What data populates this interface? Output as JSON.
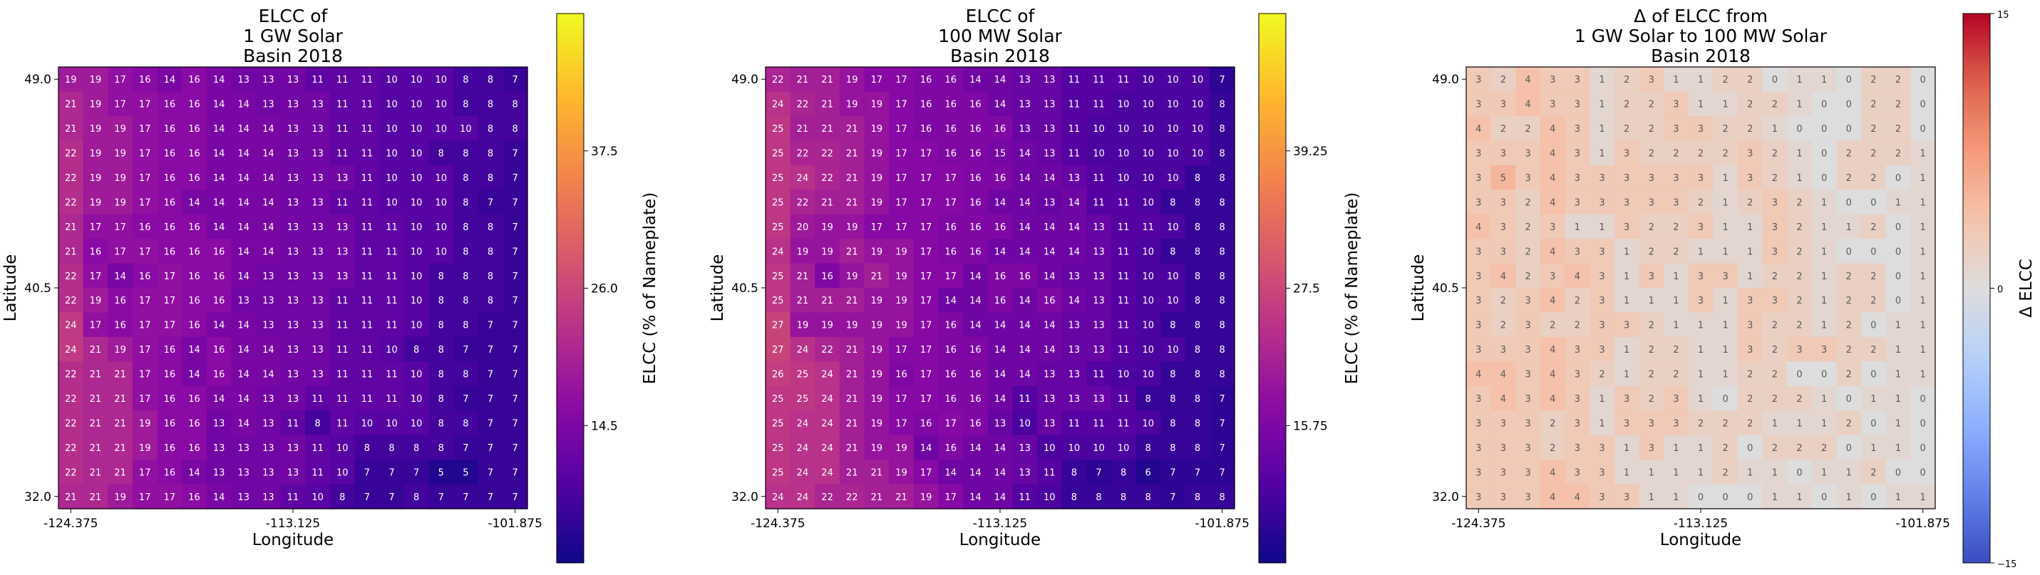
{
  "chart_data": [
    {
      "type": "heatmap",
      "title_lines": [
        "ELCC of",
        "1 GW Solar",
        "Basin 2018"
      ],
      "xlabel": "Longitude",
      "ylabel": "Latitude",
      "x_ticks": [
        "-124.375",
        "-113.125",
        "-101.875"
      ],
      "y_ticks": [
        "49.0",
        "40.5",
        "32.0"
      ],
      "colorbar_label": "ELCC (% of Nameplate)",
      "colorbar_ticks": [
        "37.5",
        "26.0",
        "14.5"
      ],
      "colorbar_range": [
        3,
        49
      ],
      "colormap": "plasma",
      "values": [
        [
          19,
          19,
          17,
          16,
          14,
          16,
          14,
          13,
          13,
          13,
          11,
          11,
          11,
          10,
          10,
          10,
          8,
          8,
          7
        ],
        [
          21,
          19,
          17,
          17,
          16,
          16,
          14,
          14,
          13,
          13,
          13,
          11,
          11,
          10,
          10,
          10,
          8,
          8,
          8
        ],
        [
          21,
          19,
          19,
          17,
          16,
          16,
          14,
          14,
          14,
          13,
          13,
          11,
          11,
          10,
          10,
          10,
          10,
          8,
          8
        ],
        [
          22,
          19,
          19,
          17,
          16,
          16,
          14,
          14,
          14,
          13,
          13,
          11,
          11,
          10,
          10,
          8,
          8,
          8,
          7
        ],
        [
          22,
          19,
          19,
          17,
          16,
          16,
          14,
          14,
          14,
          13,
          13,
          13,
          11,
          10,
          10,
          10,
          8,
          8,
          7
        ],
        [
          22,
          19,
          19,
          17,
          16,
          14,
          14,
          14,
          14,
          13,
          13,
          11,
          11,
          10,
          10,
          10,
          8,
          7,
          7
        ],
        [
          21,
          17,
          17,
          16,
          16,
          16,
          14,
          14,
          14,
          13,
          13,
          13,
          11,
          11,
          10,
          10,
          8,
          8,
          7
        ],
        [
          21,
          16,
          17,
          17,
          16,
          16,
          16,
          14,
          14,
          13,
          13,
          13,
          11,
          11,
          10,
          10,
          8,
          8,
          7
        ],
        [
          22,
          17,
          14,
          16,
          17,
          16,
          16,
          14,
          13,
          13,
          13,
          13,
          11,
          11,
          10,
          8,
          8,
          8,
          7
        ],
        [
          22,
          19,
          16,
          17,
          17,
          16,
          16,
          13,
          13,
          13,
          13,
          11,
          11,
          11,
          10,
          8,
          8,
          8,
          7
        ],
        [
          24,
          17,
          16,
          17,
          17,
          16,
          14,
          14,
          13,
          13,
          13,
          11,
          11,
          11,
          10,
          8,
          8,
          7,
          7
        ],
        [
          24,
          21,
          19,
          17,
          16,
          14,
          16,
          14,
          14,
          13,
          13,
          11,
          11,
          10,
          8,
          8,
          7,
          7,
          7
        ],
        [
          22,
          21,
          21,
          17,
          16,
          14,
          16,
          14,
          14,
          13,
          13,
          11,
          11,
          11,
          10,
          8,
          8,
          7,
          7
        ],
        [
          22,
          21,
          21,
          17,
          16,
          16,
          14,
          14,
          13,
          13,
          11,
          11,
          11,
          11,
          10,
          8,
          7,
          7,
          7
        ],
        [
          22,
          21,
          21,
          19,
          16,
          16,
          13,
          14,
          13,
          11,
          8,
          11,
          10,
          10,
          10,
          8,
          8,
          7,
          7
        ],
        [
          22,
          21,
          21,
          19,
          16,
          16,
          13,
          13,
          13,
          13,
          11,
          10,
          8,
          8,
          8,
          8,
          7,
          7,
          7
        ],
        [
          22,
          21,
          21,
          17,
          16,
          14,
          13,
          13,
          13,
          13,
          11,
          10,
          7,
          7,
          7,
          5,
          5,
          7,
          7
        ],
        [
          21,
          21,
          19,
          17,
          17,
          16,
          14,
          13,
          13,
          11,
          10,
          8,
          7,
          7,
          8,
          7,
          7,
          7,
          7
        ]
      ]
    },
    {
      "type": "heatmap",
      "title_lines": [
        "ELCC of",
        "100 MW Solar",
        "Basin 2018"
      ],
      "xlabel": "Longitude",
      "ylabel": "Latitude",
      "x_ticks": [
        "-124.375",
        "-113.125",
        "-101.875"
      ],
      "y_ticks": [
        "49.0",
        "40.5",
        "32.0"
      ],
      "colorbar_label": "ELCC (% of Nameplate)",
      "colorbar_ticks": [
        "39.25",
        "27.5",
        "15.75"
      ],
      "colorbar_range": [
        4,
        51
      ],
      "colormap": "plasma",
      "values": [
        [
          22,
          21,
          21,
          19,
          17,
          17,
          16,
          16,
          14,
          14,
          13,
          13,
          11,
          11,
          11,
          10,
          10,
          10,
          7
        ],
        [
          24,
          22,
          21,
          19,
          19,
          17,
          16,
          16,
          16,
          14,
          13,
          13,
          11,
          11,
          10,
          10,
          10,
          10,
          8
        ],
        [
          25,
          21,
          21,
          21,
          19,
          17,
          16,
          16,
          16,
          16,
          13,
          13,
          11,
          10,
          10,
          10,
          10,
          10,
          8
        ],
        [
          25,
          22,
          22,
          21,
          19,
          17,
          17,
          16,
          16,
          15,
          14,
          13,
          11,
          10,
          10,
          10,
          10,
          10,
          8
        ],
        [
          25,
          24,
          22,
          21,
          19,
          17,
          17,
          17,
          16,
          16,
          14,
          14,
          13,
          11,
          10,
          10,
          10,
          8,
          8
        ],
        [
          25,
          22,
          21,
          21,
          19,
          17,
          17,
          17,
          16,
          14,
          14,
          13,
          14,
          11,
          11,
          10,
          8,
          8,
          8
        ],
        [
          25,
          20,
          19,
          19,
          17,
          17,
          17,
          16,
          16,
          16,
          14,
          14,
          14,
          13,
          11,
          11,
          10,
          8,
          8
        ],
        [
          24,
          19,
          19,
          21,
          19,
          19,
          17,
          16,
          16,
          14,
          14,
          14,
          14,
          13,
          11,
          10,
          8,
          8,
          8
        ],
        [
          25,
          21,
          16,
          19,
          21,
          19,
          17,
          17,
          14,
          16,
          16,
          14,
          13,
          13,
          11,
          10,
          10,
          8,
          8
        ],
        [
          25,
          21,
          21,
          21,
          19,
          19,
          17,
          14,
          14,
          16,
          14,
          16,
          14,
          13,
          11,
          10,
          10,
          8,
          8
        ],
        [
          27,
          19,
          19,
          19,
          19,
          19,
          17,
          16,
          14,
          14,
          14,
          14,
          13,
          13,
          11,
          10,
          8,
          8,
          8
        ],
        [
          27,
          24,
          22,
          21,
          19,
          17,
          17,
          16,
          16,
          14,
          14,
          14,
          13,
          13,
          11,
          10,
          10,
          8,
          8
        ],
        [
          26,
          25,
          24,
          21,
          19,
          16,
          17,
          16,
          16,
          14,
          14,
          13,
          13,
          11,
          10,
          10,
          8,
          8,
          8
        ],
        [
          25,
          25,
          24,
          21,
          19,
          17,
          17,
          16,
          16,
          14,
          11,
          13,
          13,
          13,
          11,
          8,
          8,
          8,
          7
        ],
        [
          25,
          24,
          24,
          21,
          19,
          17,
          16,
          17,
          16,
          13,
          10,
          13,
          11,
          11,
          11,
          10,
          8,
          8,
          7
        ],
        [
          25,
          24,
          24,
          21,
          19,
          19,
          14,
          16,
          14,
          14,
          13,
          10,
          10,
          10,
          10,
          8,
          8,
          8,
          7
        ],
        [
          25,
          24,
          24,
          21,
          21,
          19,
          17,
          14,
          14,
          14,
          13,
          11,
          8,
          7,
          8,
          6,
          7,
          7,
          7
        ],
        [
          24,
          24,
          22,
          22,
          21,
          21,
          19,
          17,
          14,
          14,
          11,
          10,
          8,
          8,
          8,
          8,
          7,
          8,
          8
        ]
      ]
    },
    {
      "type": "heatmap",
      "title_lines": [
        "Δ of ELCC from",
        "1 GW Solar to 100 MW Solar",
        "Basin 2018"
      ],
      "xlabel": "Longitude",
      "ylabel": "Latitude",
      "x_ticks": [
        "-124.375",
        "-113.125",
        "-101.875"
      ],
      "y_ticks": [
        "49.0",
        "40.5",
        "32.0"
      ],
      "colorbar_label": "Δ ELCC",
      "colorbar_ticks": [
        "15",
        "0",
        "−15"
      ],
      "colorbar_range": [
        -15,
        15
      ],
      "colormap": "coolwarm",
      "values": [
        [
          3,
          2,
          4,
          3,
          3,
          1,
          2,
          3,
          1,
          1,
          2,
          2,
          0,
          1,
          1,
          0,
          2,
          2,
          0
        ],
        [
          3,
          3,
          4,
          3,
          3,
          1,
          2,
          2,
          3,
          1,
          1,
          2,
          2,
          1,
          0,
          0,
          2,
          2,
          0
        ],
        [
          4,
          2,
          2,
          4,
          3,
          1,
          2,
          2,
          3,
          3,
          2,
          2,
          1,
          0,
          0,
          0,
          2,
          2,
          0
        ],
        [
          3,
          3,
          3,
          4,
          3,
          1,
          3,
          2,
          2,
          2,
          2,
          3,
          2,
          1,
          0,
          2,
          2,
          2,
          1
        ],
        [
          3,
          5,
          3,
          4,
          3,
          3,
          3,
          3,
          3,
          3,
          1,
          3,
          2,
          1,
          0,
          2,
          2,
          0,
          1
        ],
        [
          3,
          3,
          2,
          4,
          3,
          3,
          3,
          3,
          3,
          2,
          1,
          2,
          3,
          2,
          1,
          0,
          0,
          1,
          1
        ],
        [
          4,
          3,
          2,
          3,
          1,
          1,
          3,
          2,
          2,
          3,
          1,
          1,
          3,
          2,
          1,
          1,
          2,
          0,
          1
        ],
        [
          3,
          3,
          2,
          4,
          3,
          3,
          1,
          2,
          2,
          1,
          1,
          1,
          3,
          2,
          1,
          0,
          0,
          0,
          1
        ],
        [
          3,
          4,
          2,
          3,
          4,
          3,
          1,
          3,
          1,
          3,
          3,
          1,
          2,
          2,
          1,
          2,
          2,
          0,
          1
        ],
        [
          3,
          2,
          3,
          4,
          2,
          3,
          1,
          1,
          1,
          3,
          1,
          3,
          3,
          2,
          1,
          2,
          2,
          0,
          1
        ],
        [
          3,
          2,
          3,
          2,
          2,
          3,
          3,
          2,
          1,
          1,
          1,
          3,
          2,
          2,
          1,
          2,
          0,
          1,
          1
        ],
        [
          3,
          3,
          3,
          4,
          3,
          3,
          1,
          2,
          2,
          1,
          1,
          3,
          2,
          3,
          3,
          2,
          2,
          1,
          1
        ],
        [
          4,
          4,
          3,
          4,
          3,
          2,
          1,
          2,
          2,
          1,
          1,
          2,
          2,
          0,
          0,
          2,
          0,
          1,
          1
        ],
        [
          3,
          4,
          3,
          4,
          3,
          1,
          3,
          2,
          3,
          1,
          0,
          2,
          2,
          2,
          1,
          0,
          1,
          1,
          0
        ],
        [
          3,
          3,
          3,
          2,
          3,
          1,
          3,
          3,
          3,
          2,
          2,
          2,
          1,
          1,
          1,
          2,
          0,
          1,
          0
        ],
        [
          3,
          3,
          3,
          2,
          3,
          3,
          1,
          3,
          1,
          1,
          2,
          0,
          2,
          2,
          2,
          0,
          1,
          1,
          0
        ],
        [
          3,
          3,
          3,
          4,
          3,
          3,
          1,
          1,
          1,
          1,
          2,
          1,
          1,
          0,
          1,
          1,
          2,
          0,
          0
        ],
        [
          3,
          3,
          3,
          4,
          4,
          3,
          3,
          1,
          1,
          0,
          0,
          0,
          1,
          1,
          0,
          1,
          0,
          1,
          1
        ]
      ]
    }
  ]
}
